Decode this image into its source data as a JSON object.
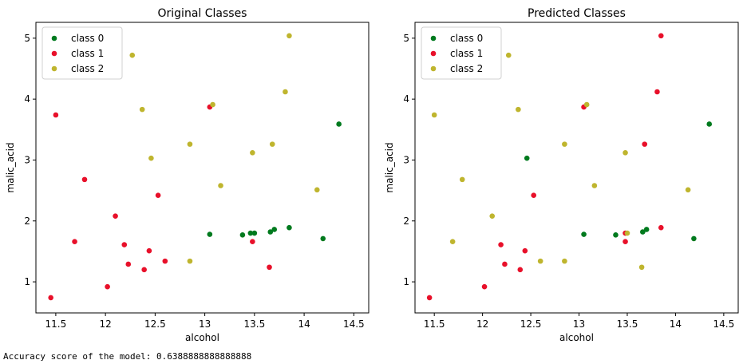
{
  "chart_data": [
    {
      "type": "scatter",
      "title": "Original Classes",
      "x_label": "alcohol",
      "y_label": "malic_acid",
      "xlim": [
        11.3,
        14.65
      ],
      "ylim": [
        0.49,
        5.26
      ],
      "xticks": [
        11.5,
        12.0,
        12.5,
        13.0,
        13.5,
        14.0,
        14.5
      ],
      "yticks": [
        1,
        2,
        3,
        4,
        5
      ],
      "legend": "upper left",
      "series": [
        {
          "name": "class 0",
          "color": "#007a1e",
          "x": [
            14.35,
            13.05,
            13.38,
            13.46,
            13.5,
            13.66,
            13.7,
            13.85,
            14.19
          ],
          "values": [
            3.59,
            1.78,
            1.77,
            1.8,
            1.8,
            1.82,
            1.86,
            1.89,
            1.71
          ]
        },
        {
          "name": "class 1",
          "color": "#e8102a",
          "x": [
            11.45,
            11.5,
            11.79,
            11.69,
            12.1,
            12.02,
            12.19,
            12.23,
            12.39,
            12.44,
            12.53,
            12.6,
            13.05,
            13.48,
            13.65
          ],
          "values": [
            0.74,
            3.74,
            2.68,
            1.66,
            2.08,
            0.92,
            1.61,
            1.29,
            1.2,
            1.51,
            2.42,
            1.34,
            3.87,
            1.66,
            1.24
          ]
        },
        {
          "name": "class 2",
          "color": "#bfb52e",
          "x": [
            12.27,
            12.37,
            12.46,
            12.85,
            12.85,
            13.08,
            13.16,
            13.48,
            13.68,
            13.81,
            13.85,
            14.13
          ],
          "values": [
            4.72,
            3.83,
            3.03,
            3.26,
            1.34,
            3.91,
            2.58,
            3.12,
            3.26,
            4.12,
            5.04,
            2.51
          ]
        }
      ]
    },
    {
      "type": "scatter",
      "title": "Predicted Classes",
      "x_label": "alcohol",
      "y_label": "malic_acid",
      "xlim": [
        11.3,
        14.65
      ],
      "ylim": [
        0.49,
        5.26
      ],
      "xticks": [
        11.5,
        12.0,
        12.5,
        13.0,
        13.5,
        14.0,
        14.5
      ],
      "yticks": [
        1,
        2,
        3,
        4,
        5
      ],
      "legend": "upper left",
      "series": [
        {
          "name": "class 0",
          "color": "#007a1e",
          "x": [
            14.35,
            12.46,
            13.05,
            13.38,
            13.66,
            13.7,
            14.19
          ],
          "values": [
            3.59,
            3.03,
            1.78,
            1.77,
            1.82,
            1.86,
            1.71
          ]
        },
        {
          "name": "class 1",
          "color": "#e8102a",
          "x": [
            11.45,
            12.02,
            12.19,
            12.23,
            12.39,
            12.44,
            12.53,
            13.05,
            13.48,
            13.48,
            13.68,
            13.81,
            13.85,
            13.85
          ],
          "values": [
            0.74,
            0.92,
            1.61,
            1.29,
            1.2,
            1.51,
            2.42,
            3.87,
            1.8,
            1.66,
            3.26,
            4.12,
            5.04,
            1.89
          ]
        },
        {
          "name": "class 2",
          "color": "#bfb52e",
          "x": [
            11.5,
            11.79,
            11.69,
            12.1,
            12.27,
            12.37,
            12.6,
            12.85,
            12.85,
            13.08,
            13.16,
            13.48,
            13.5,
            13.65,
            14.13
          ],
          "values": [
            3.74,
            2.68,
            1.66,
            2.08,
            4.72,
            3.83,
            1.34,
            3.26,
            1.34,
            3.91,
            2.58,
            3.12,
            1.8,
            1.24,
            2.51
          ]
        }
      ]
    }
  ],
  "output_text": "Accuracy score of the model: 0.6388888888888888"
}
